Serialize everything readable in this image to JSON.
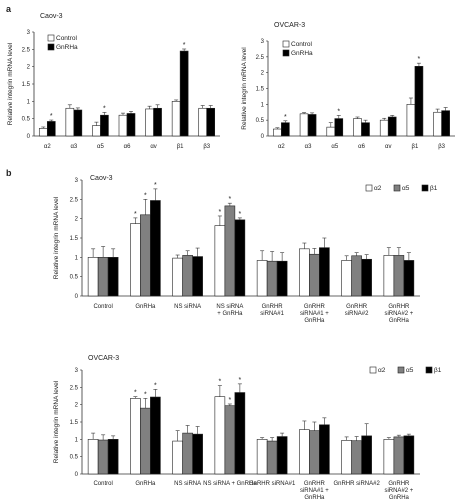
{
  "panels": {
    "a": "a",
    "b": "b"
  },
  "chart_data": [
    {
      "type": "bar",
      "panel": "a",
      "title": "Caov-3",
      "ylabel": "Relative integrin mRNA level",
      "ylim": [
        0,
        3
      ],
      "yticks": [
        "0",
        "0.5",
        "1",
        "1.5",
        "2",
        "2.5",
        "3"
      ],
      "categories": [
        "α2",
        "α3",
        "α5",
        "α6",
        "αv",
        "β1",
        "β3"
      ],
      "legend_position": "top-left",
      "series": [
        {
          "name": "Control",
          "values": [
            0.22,
            0.8,
            0.3,
            0.6,
            0.78,
            1.0,
            0.8
          ],
          "errors": [
            0.04,
            0.1,
            0.1,
            0.06,
            0.08,
            0.04,
            0.08
          ]
        },
        {
          "name": "GnRHa",
          "values": [
            0.42,
            0.75,
            0.6,
            0.65,
            0.8,
            2.45,
            0.8
          ],
          "errors": [
            0.04,
            0.06,
            0.08,
            0.06,
            0.1,
            0.06,
            0.08
          ]
        }
      ],
      "significance": [
        [
          0,
          1
        ],
        [
          2,
          1
        ],
        [
          5,
          1
        ]
      ]
    },
    {
      "type": "bar",
      "panel": "a",
      "title": "OVCAR-3",
      "ylabel": "Relative integrin mRNA level",
      "ylim": [
        0,
        3
      ],
      "yticks": [
        "0",
        "0.5",
        "1",
        "1.5",
        "2",
        "2.5",
        "3"
      ],
      "categories": [
        "α2",
        "α3",
        "α5",
        "α6",
        "αv",
        "β1",
        "β3"
      ],
      "legend_position": "top-left",
      "series": [
        {
          "name": "Control",
          "values": [
            0.22,
            0.7,
            0.28,
            0.55,
            0.5,
            1.0,
            0.75
          ],
          "errors": [
            0.04,
            0.04,
            0.14,
            0.05,
            0.06,
            0.2,
            0.1
          ]
        },
        {
          "name": "GnRHa",
          "values": [
            0.42,
            0.68,
            0.55,
            0.42,
            0.6,
            2.2,
            0.8
          ],
          "errors": [
            0.06,
            0.05,
            0.1,
            0.08,
            0.05,
            0.1,
            0.1
          ]
        }
      ],
      "significance": [
        [
          0,
          1
        ],
        [
          2,
          1
        ],
        [
          5,
          1
        ]
      ]
    },
    {
      "type": "bar",
      "panel": "b",
      "title": "Caov-3",
      "ylabel": "Relative integrin mRNA level",
      "ylim": [
        0,
        3
      ],
      "yticks": [
        "0",
        "0.5",
        "1",
        "1.5",
        "2",
        "2.5",
        "3"
      ],
      "categories": [
        [
          "Control"
        ],
        [
          "GnRHa"
        ],
        [
          "NS siRNA"
        ],
        [
          "NS siRNA",
          "+ GnRHa"
        ],
        [
          "GnRHR",
          "siRNA#1"
        ],
        [
          "GnRHR",
          "siRNA#1 +",
          "GnRHa"
        ],
        [
          "GnRHR",
          "siRNA#2"
        ],
        [
          "GnRHR",
          "siRNA#2 +",
          "GnRHa"
        ]
      ],
      "legend_position": "top-right",
      "series": [
        {
          "name": "α2",
          "values": [
            1.0,
            1.87,
            0.98,
            1.82,
            0.92,
            1.22,
            0.92,
            1.05
          ],
          "errors": [
            0.22,
            0.15,
            0.08,
            0.25,
            0.25,
            0.15,
            0.12,
            0.2
          ]
        },
        {
          "name": "α5",
          "values": [
            1.0,
            2.1,
            1.05,
            2.33,
            0.9,
            1.08,
            1.04,
            1.05
          ],
          "errors": [
            0.28,
            0.4,
            0.12,
            0.07,
            0.25,
            0.15,
            0.08,
            0.2
          ]
        },
        {
          "name": "β1",
          "values": [
            1.0,
            2.47,
            1.02,
            1.97,
            0.9,
            1.25,
            0.95,
            0.92
          ],
          "errors": [
            0.22,
            0.3,
            0.22,
            0.05,
            0.22,
            0.25,
            0.12,
            0.2
          ]
        }
      ],
      "significance": [
        [
          1,
          0
        ],
        [
          1,
          1
        ],
        [
          1,
          2
        ],
        [
          3,
          0
        ],
        [
          3,
          1
        ],
        [
          3,
          2
        ]
      ]
    },
    {
      "type": "bar",
      "panel": "b",
      "title": "OVCAR-3",
      "ylabel": "Relative integrin mRNA level",
      "ylim": [
        0,
        3
      ],
      "yticks": [
        "0",
        "0.5",
        "1",
        "1.5",
        "2",
        "2.5",
        "3"
      ],
      "categories": [
        [
          "Control"
        ],
        [
          "GnRHa"
        ],
        [
          "NS siRNA"
        ],
        [
          "NS siRNA + GnRHa"
        ],
        [
          "GnRHR siRNA#1"
        ],
        [
          "GnRHR",
          "siRNA#1 +",
          "GnRHa"
        ],
        [
          "GnRHR siRNA#2"
        ],
        [
          "GnRHR",
          "siRNA#2 +",
          "GnRHa"
        ]
      ],
      "legend_position": "top-right",
      "series": [
        {
          "name": "α2",
          "values": [
            1.0,
            2.18,
            0.95,
            2.23,
            1.0,
            1.28,
            0.97,
            1.0
          ],
          "errors": [
            0.18,
            0.05,
            0.3,
            0.32,
            0.05,
            0.25,
            0.1,
            0.05
          ]
        },
        {
          "name": "α5",
          "values": [
            0.98,
            1.9,
            1.18,
            1.97,
            0.95,
            1.25,
            0.96,
            1.07
          ],
          "errors": [
            0.15,
            0.28,
            0.22,
            0.05,
            0.1,
            0.25,
            0.12,
            0.05
          ]
        },
        {
          "name": "β1",
          "values": [
            1.0,
            2.22,
            1.15,
            2.35,
            1.08,
            1.42,
            1.1,
            1.1
          ],
          "errors": [
            0.1,
            0.22,
            0.22,
            0.25,
            0.1,
            0.2,
            0.35,
            0.05
          ]
        }
      ],
      "significance": [
        [
          1,
          0
        ],
        [
          1,
          1
        ],
        [
          1,
          2
        ],
        [
          3,
          0
        ],
        [
          3,
          1
        ],
        [
          3,
          2
        ]
      ]
    }
  ],
  "style": {
    "fills": [
      "#ffffff",
      "#000000"
    ],
    "fills3": [
      "#ffffff",
      "#808080",
      "#000000"
    ],
    "axis": "#333333",
    "star": "*"
  }
}
